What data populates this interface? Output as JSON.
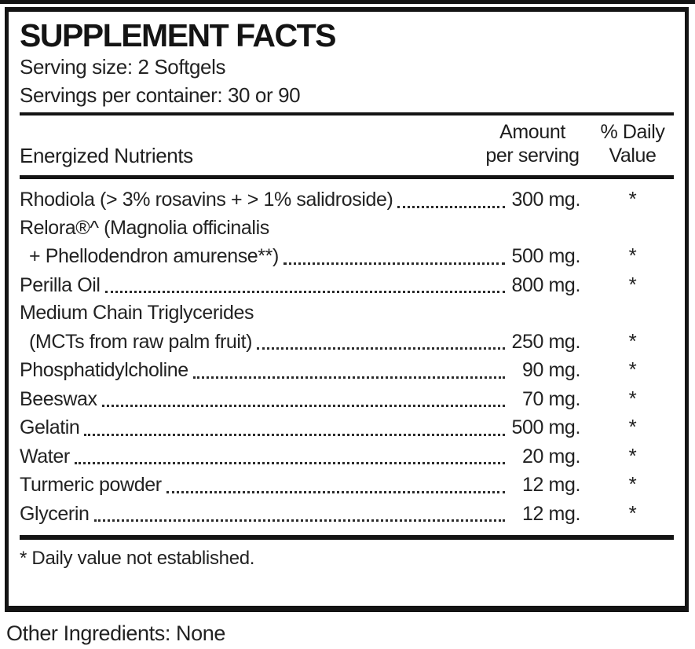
{
  "panel": {
    "title": "SUPPLEMENT FACTS",
    "serving_size": "Serving size: 2 Softgels",
    "servings_per_container": "Servings per container: 30 or 90",
    "columns": {
      "nutrient": "Energized Nutrients",
      "amount_line1": "Amount",
      "amount_line2": "per serving",
      "dv_line1": "% Daily",
      "dv_line2": "Value"
    },
    "rows": [
      {
        "lines": [
          "Rhodiola (> 3% rosavins + > 1% salidroside)"
        ],
        "amount": "300 mg.",
        "daily_value": "*"
      },
      {
        "lines": [
          "Relora®^ (Magnolia officinalis",
          "+ Phellodendron amurense**)"
        ],
        "amount": "500 mg.",
        "daily_value": "*"
      },
      {
        "lines": [
          "Perilla Oil"
        ],
        "amount": "800 mg.",
        "daily_value": "*"
      },
      {
        "lines": [
          "Medium Chain Triglycerides",
          "(MCTs from raw palm fruit)"
        ],
        "amount": "250 mg.",
        "daily_value": "*"
      },
      {
        "lines": [
          "Phosphatidylcholine"
        ],
        "amount": "90 mg.",
        "daily_value": "*"
      },
      {
        "lines": [
          "Beeswax"
        ],
        "amount": "70 mg.",
        "daily_value": "*"
      },
      {
        "lines": [
          "Gelatin"
        ],
        "amount": "500 mg.",
        "daily_value": "*"
      },
      {
        "lines": [
          "Water"
        ],
        "amount": "20 mg.",
        "daily_value": "*"
      },
      {
        "lines": [
          "Turmeric powder"
        ],
        "amount": "12 mg.",
        "daily_value": "*"
      },
      {
        "lines": [
          "Glycerin"
        ],
        "amount": "12 mg.",
        "daily_value": "*"
      }
    ],
    "footnote": "* Daily value not established.",
    "other_ingredients": "Other Ingredients: None"
  },
  "colors": {
    "ink": "#141414",
    "text": "#222222",
    "background": "#ffffff"
  }
}
